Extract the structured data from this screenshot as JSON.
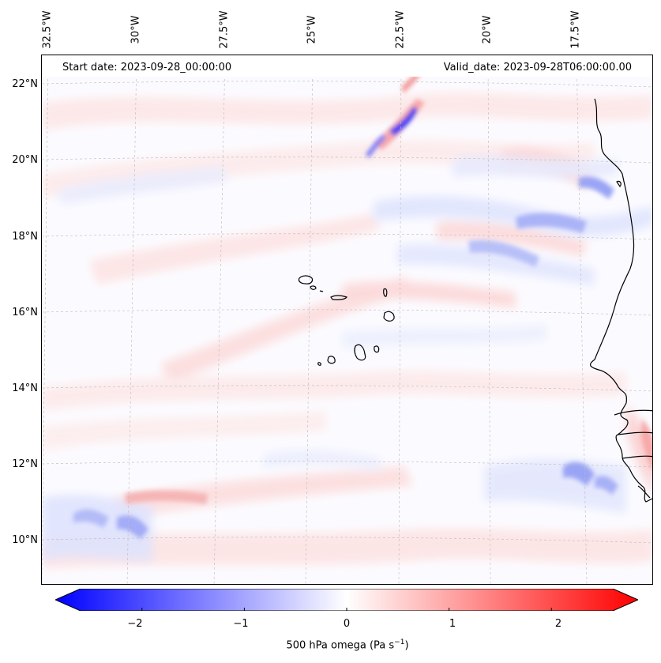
{
  "header": {
    "start_date": "Start date: 2023-09-28_00:00:00",
    "valid_date": "Valid_date: 2023-09-28T06:00:00.00"
  },
  "lon_labels": [
    "32.5°W",
    "30°W",
    "27.5°W",
    "25°W",
    "22.5°W",
    "20°W",
    "17.5°W"
  ],
  "lat_labels": [
    "22°N",
    "20°N",
    "18°N",
    "16°N",
    "14°N",
    "12°N",
    "10°N"
  ],
  "colorbar": {
    "label": "500 hPa omega (Pa s",
    "label_superscript": "−1",
    "label_close": ")",
    "ticks": [
      "−2",
      "−1",
      "0",
      "1",
      "2"
    ],
    "tick_values": [
      -2,
      -1,
      0,
      1,
      2
    ],
    "range": [
      -2.6,
      2.6
    ],
    "colormap": "bwr",
    "low_color": "#0000ff",
    "mid_color": "#ffffff",
    "high_color": "#ff0000"
  },
  "map": {
    "extent_lon": [
      -32.8,
      -15.0
    ],
    "extent_lat": [
      8.8,
      22.8
    ],
    "gridlines": true,
    "coastline_color": "#000000"
  }
}
